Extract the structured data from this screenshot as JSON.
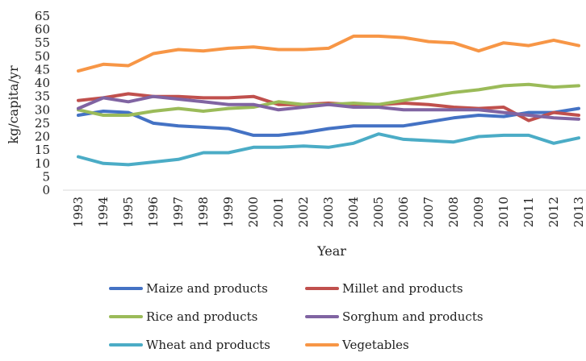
{
  "chart_data": {
    "type": "line",
    "xlabel": "Year",
    "ylabel": "kg/capita/yr",
    "ylim": [
      0,
      65
    ],
    "yticks": [
      "0",
      "5",
      "10",
      "15",
      "20",
      "25",
      "30",
      "35",
      "40",
      "45",
      "50",
      "55",
      "60",
      "65"
    ],
    "x": [
      "1993",
      "1994",
      "1995",
      "1996",
      "1997",
      "1998",
      "1999",
      "2000",
      "2001",
      "2002",
      "2003",
      "2004",
      "2005",
      "2006",
      "2007",
      "2008",
      "2009",
      "2010",
      "2011",
      "2012",
      "2013"
    ],
    "grid": false,
    "legend_position": "bottom",
    "series": [
      {
        "name": "Maize and products",
        "color": "#4472C4",
        "values": [
          28,
          29.5,
          29,
          25,
          24,
          23.5,
          23,
          20.5,
          20.5,
          21.5,
          23,
          24,
          24,
          24,
          25.5,
          27,
          28,
          27.5,
          29,
          29,
          30.5
        ]
      },
      {
        "name": "Millet and products",
        "color": "#C0504D",
        "values": [
          33.5,
          34.5,
          36,
          35,
          35,
          34.5,
          34.5,
          35,
          32,
          32,
          32.5,
          32,
          32,
          32.5,
          32,
          31,
          30.5,
          31,
          26,
          29,
          28
        ]
      },
      {
        "name": "Rice and products",
        "color": "#9BBB59",
        "values": [
          30,
          28,
          28,
          29.5,
          30.5,
          29.5,
          30.5,
          31,
          33,
          32,
          32,
          32.5,
          32,
          33.5,
          35,
          36.5,
          37.5,
          39,
          39.5,
          38.5,
          39
        ]
      },
      {
        "name": "Sorghum and products",
        "color": "#8064A2",
        "values": [
          30.5,
          34.5,
          33,
          35,
          34,
          33,
          32,
          32,
          30,
          31,
          32,
          31,
          31,
          30,
          30,
          30,
          30,
          29,
          28,
          27,
          26.5
        ]
      },
      {
        "name": "Wheat and products",
        "color": "#4BACC6",
        "values": [
          12.5,
          10,
          9.5,
          10.5,
          11.5,
          14,
          14,
          16,
          16,
          16.5,
          16,
          17.5,
          21,
          19,
          18.5,
          18,
          20,
          20.5,
          20.5,
          17.5,
          19.5
        ]
      },
      {
        "name": "Vegetables",
        "color": "#F79646",
        "values": [
          44.5,
          47,
          46.5,
          51,
          52.5,
          52,
          53,
          53.5,
          52.5,
          52.5,
          53,
          57.5,
          57.5,
          57,
          55.5,
          55,
          52,
          55,
          54,
          56,
          54
        ]
      }
    ]
  }
}
